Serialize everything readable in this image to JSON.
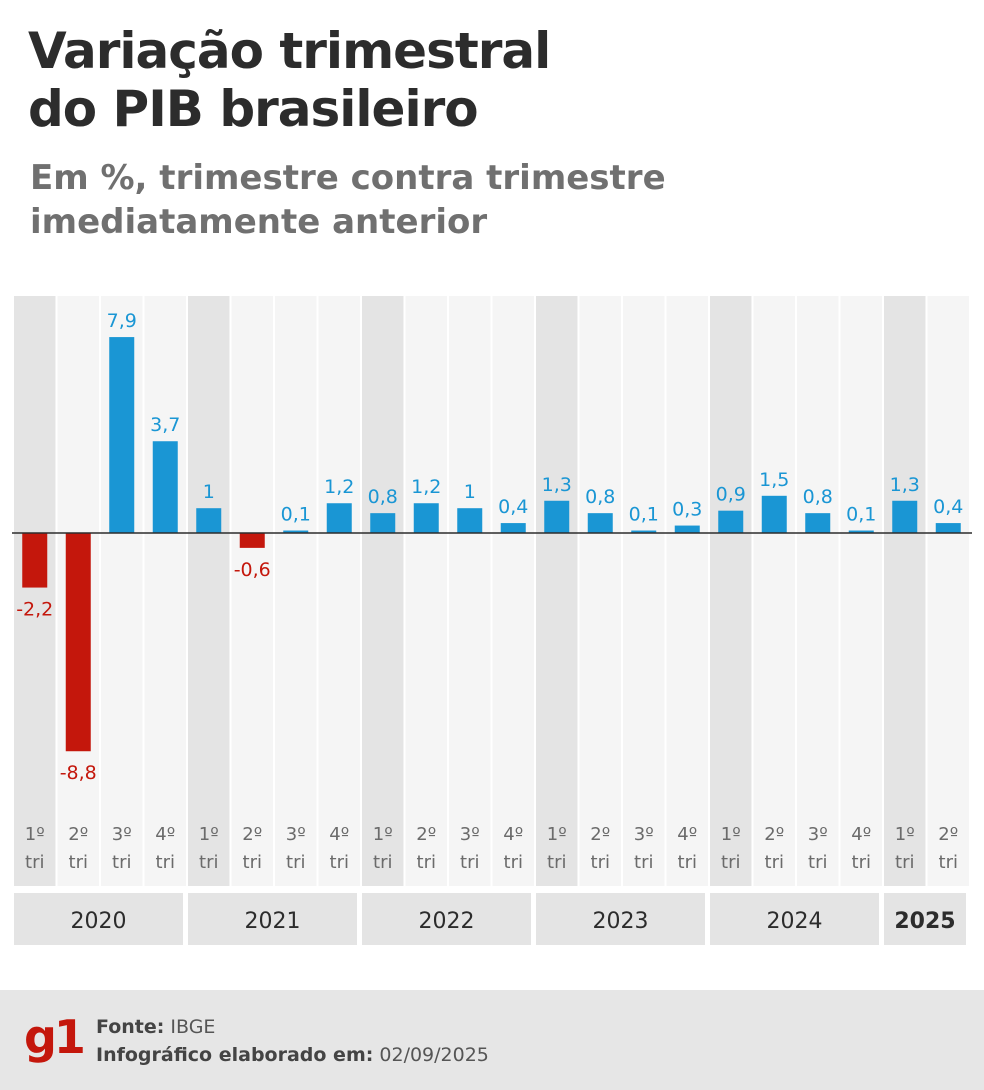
{
  "title_line1": "Variação trimestral",
  "title_line2": "do PIB brasileiro",
  "subtitle_line1": "Em %, trimestre contra trimestre",
  "subtitle_line2": "imediatamente anterior",
  "footer": {
    "logo": "g1",
    "source_label": "Fonte:",
    "source_value": "IBGE",
    "date_label": "Infográfico elaborado em:",
    "date_value": "02/09/2025"
  },
  "colors": {
    "positive": "#1a96d4",
    "negative": "#c4170c",
    "shade_dark": "#e4e4e4",
    "shade_light": "#f5f5f5",
    "axis": "#2c2c2c",
    "quarter_text": "#6b6b6b"
  },
  "chart_data": {
    "type": "bar",
    "title": "Variação trimestral do PIB brasileiro",
    "subtitle": "Em %, trimestre contra trimestre imediatamente anterior",
    "categories": [
      "1º tri 2020",
      "2º tri 2020",
      "3º tri 2020",
      "4º tri 2020",
      "1º tri 2021",
      "2º tri 2021",
      "3º tri 2021",
      "4º tri 2021",
      "1º tri 2022",
      "2º tri 2022",
      "3º tri 2022",
      "4º tri 2022",
      "1º tri 2023",
      "2º tri 2023",
      "3º tri 2023",
      "4º tri 2023",
      "1º tri 2024",
      "2º tri 2024",
      "3º tri 2024",
      "4º tri 2024",
      "1º tri 2025",
      "2º tri 2025"
    ],
    "values": [
      -2.2,
      -8.8,
      7.9,
      3.7,
      1,
      -0.6,
      0.1,
      1.2,
      0.8,
      1.2,
      1,
      0.4,
      1.3,
      0.8,
      0.1,
      0.3,
      0.9,
      1.5,
      0.8,
      0.1,
      1.3,
      0.4
    ],
    "value_labels": [
      "-2,2",
      "-8,8",
      "7,9",
      "3,7",
      "1",
      "-0,6",
      "0,1",
      "1,2",
      "0,8",
      "1,2",
      "1",
      "0,4",
      "1,3",
      "0,8",
      "0,1",
      "0,3",
      "0,9",
      "1,5",
      "0,8",
      "0,1",
      "1,3",
      "0,4"
    ],
    "quarters": [
      {
        "num": "1º",
        "tri": "tri"
      },
      {
        "num": "2º",
        "tri": "tri"
      },
      {
        "num": "3º",
        "tri": "tri"
      },
      {
        "num": "4º",
        "tri": "tri"
      },
      {
        "num": "1º",
        "tri": "tri"
      },
      {
        "num": "2º",
        "tri": "tri"
      },
      {
        "num": "3º",
        "tri": "tri"
      },
      {
        "num": "4º",
        "tri": "tri"
      },
      {
        "num": "1º",
        "tri": "tri"
      },
      {
        "num": "2º",
        "tri": "tri"
      },
      {
        "num": "3º",
        "tri": "tri"
      },
      {
        "num": "4º",
        "tri": "tri"
      },
      {
        "num": "1º",
        "tri": "tri"
      },
      {
        "num": "2º",
        "tri": "tri"
      },
      {
        "num": "3º",
        "tri": "tri"
      },
      {
        "num": "4º",
        "tri": "tri"
      },
      {
        "num": "1º",
        "tri": "tri"
      },
      {
        "num": "2º",
        "tri": "tri"
      },
      {
        "num": "3º",
        "tri": "tri"
      },
      {
        "num": "4º",
        "tri": "tri"
      },
      {
        "num": "1º",
        "tri": "tri"
      },
      {
        "num": "2º",
        "tri": "tri"
      }
    ],
    "years": [
      {
        "label": "2020",
        "start": 0,
        "end": 3,
        "bold": false
      },
      {
        "label": "2021",
        "start": 4,
        "end": 7,
        "bold": false
      },
      {
        "label": "2022",
        "start": 8,
        "end": 11,
        "bold": false
      },
      {
        "label": "2023",
        "start": 12,
        "end": 15,
        "bold": false
      },
      {
        "label": "2024",
        "start": 16,
        "end": 19,
        "bold": false
      },
      {
        "label": "2025",
        "start": 20,
        "end": 21,
        "bold": true
      }
    ],
    "ylim": [
      -10,
      9
    ],
    "grid": false,
    "xlabel": "",
    "ylabel": ""
  }
}
